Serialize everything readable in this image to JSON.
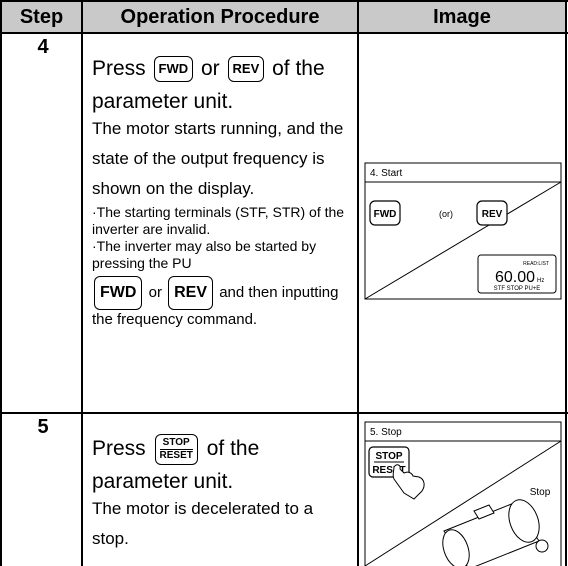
{
  "table": {
    "header": [
      "Step",
      "Operation Procedure",
      "Image"
    ],
    "rows": [
      {
        "step": "4",
        "procedure": {
          "lead": "Press",
          "button_1": "FWD",
          "connector": "or",
          "button_2": "REV",
          "tail": "of the parameter unit."
        },
        "description": "The motor starts running, and the state of the output frequency is shown on the display.",
        "notes": [
          "·The starting terminals (STF, STR) of the inverter are invalid.",
          "·The inverter may also be started by pressing the PU"
        ],
        "note_continuation": {
          "button_1": "FWD",
          "connector": "or",
          "button_2": "REV",
          "tail": "and then inputting the frequency command."
        },
        "image": {
          "title": "4. Start",
          "button_1": "FWD",
          "connector": "(or)",
          "button_2": "REV",
          "display": {
            "status": "READ:LIST",
            "value": "60.00",
            "unit": "Hz",
            "indicators": "STF STOP PU+E"
          }
        }
      },
      {
        "step": "5",
        "procedure": {
          "lead": "Press",
          "button": [
            "STOP",
            "RESET"
          ],
          "tail": "of the parameter unit."
        },
        "description": "The motor is decelerated to a stop.",
        "image": {
          "title": "5. Stop",
          "button": [
            "STOP",
            "RESET"
          ],
          "label": "Stop"
        }
      }
    ]
  }
}
